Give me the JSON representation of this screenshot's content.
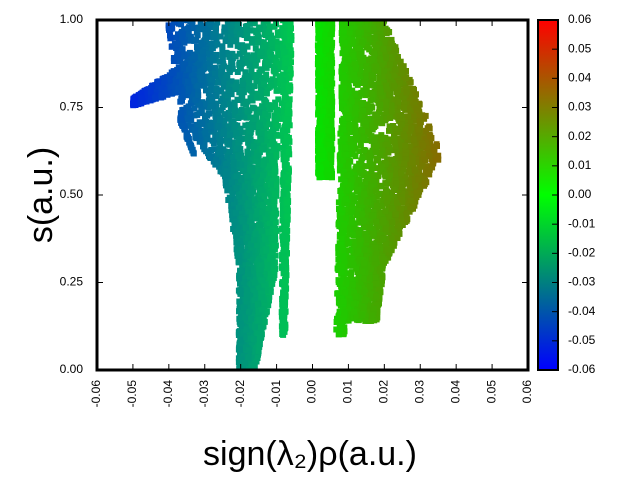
{
  "chart_data": {
    "type": "scatter",
    "title": "",
    "xlabel": "sign(λ₂)ρ(a.u.)",
    "ylabel": "s(a.u.)",
    "xlim": [
      -0.06,
      0.06
    ],
    "ylim": [
      0.0,
      1.0
    ],
    "x_ticks": [
      "-0.06",
      "-0.05",
      "-0.04",
      "-0.03",
      "-0.02",
      "-0.01",
      "0.00",
      "0.01",
      "0.02",
      "0.03",
      "0.04",
      "0.05",
      "0.06"
    ],
    "y_ticks": [
      "0.00",
      "0.25",
      "0.50",
      "0.75",
      "1.00"
    ],
    "grid": false,
    "colorbar": {
      "min": -0.06,
      "max": 0.06,
      "ticks": [
        "0.06",
        "0.05",
        "0.04",
        "0.03",
        "0.02",
        "0.01",
        "0.00",
        "-0.01",
        "-0.02",
        "-0.03",
        "-0.04",
        "-0.05",
        "-0.06"
      ],
      "colors": [
        "#0000ff",
        "#00ff00",
        "#ff0000"
      ]
    },
    "points_description": "dense square-marker scatter of RDG s versus sign(lambda2)rho, color mapped by x value",
    "regions": [
      {
        "x_min": -0.05,
        "x_max": -0.004,
        "s_min": 0.0,
        "s_max": 1.0
      },
      {
        "x_min": 0.001,
        "x_max": 0.036,
        "s_min": 0.1,
        "s_max": 1.0
      }
    ]
  }
}
